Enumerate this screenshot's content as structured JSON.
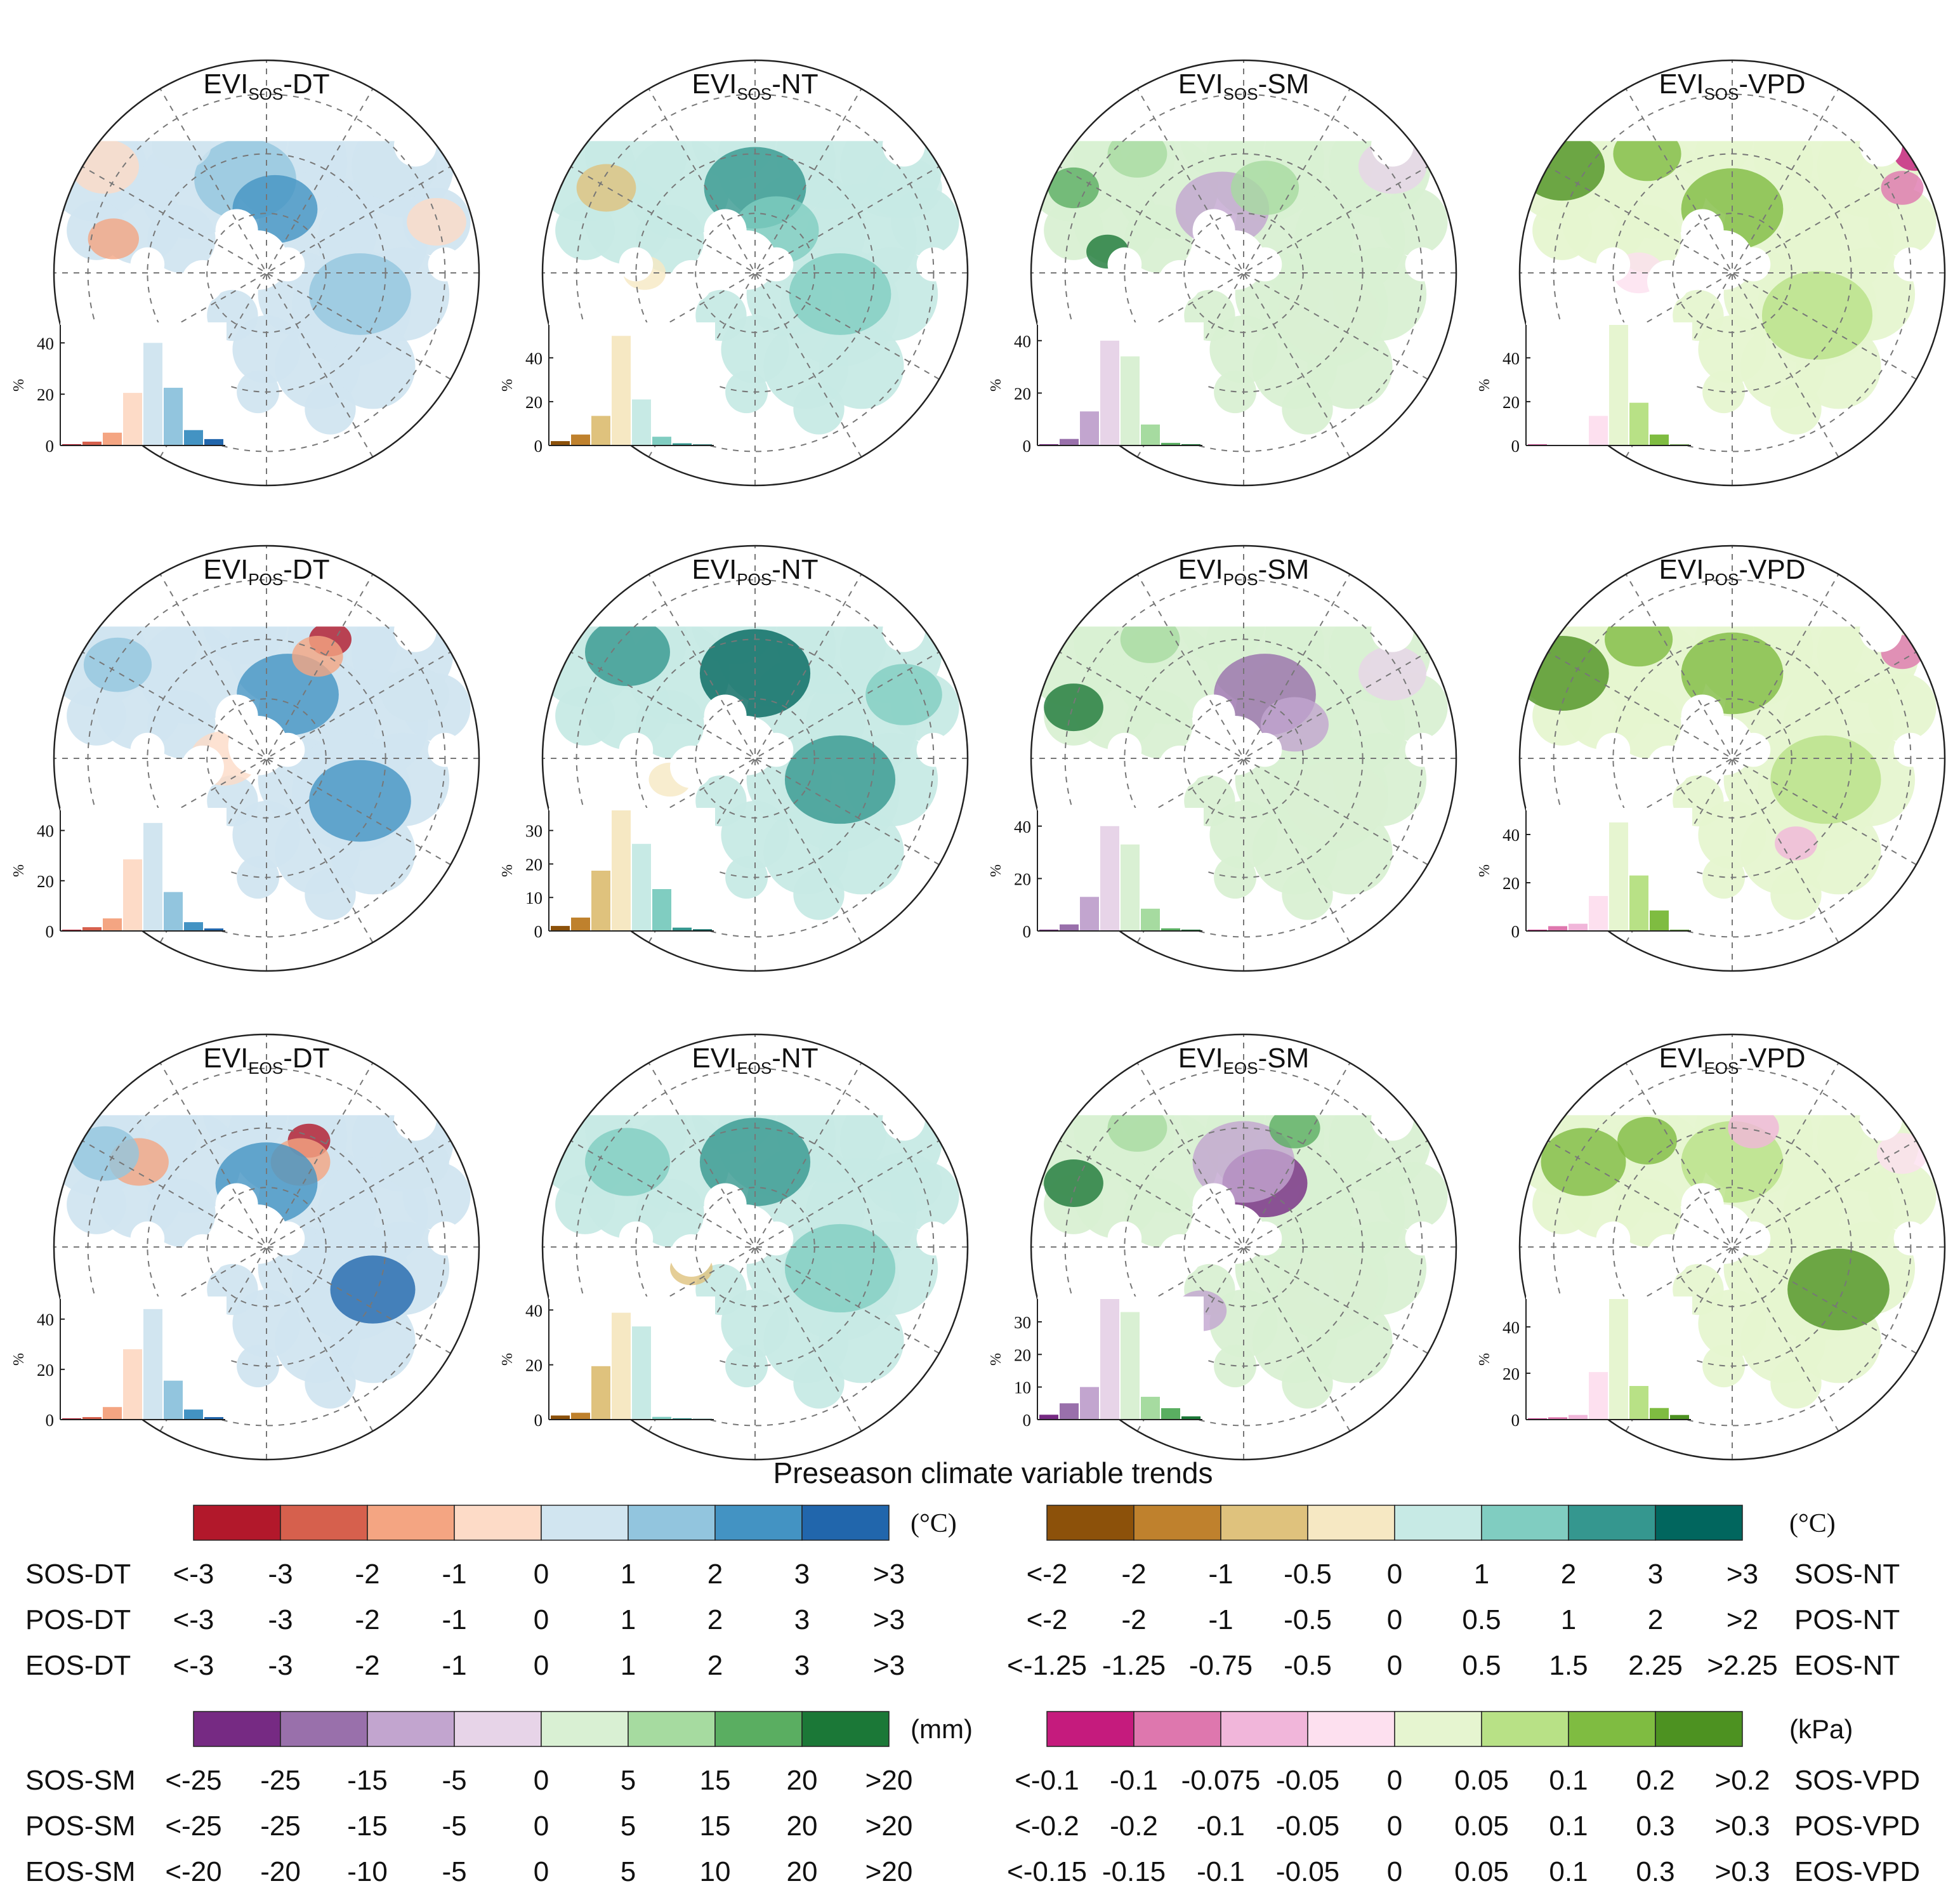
{
  "panels": [
    {
      "base": "EVI",
      "sub": "SOS",
      "suffix": "-DT",
      "ramp": "dt",
      "yticks": [
        "0",
        "20",
        "40"
      ],
      "ymax": 47,
      "bars": [
        0.5,
        1.5,
        5,
        20.5,
        40,
        22.5,
        6,
        2.5
      ],
      "blobs": [
        {
          "fx": 0.45,
          "fy": 0.28,
          "r": 0.12,
          "c": 5
        },
        {
          "fx": 0.52,
          "fy": 0.35,
          "r": 0.1,
          "c": 6
        },
        {
          "fx": 0.12,
          "fy": 0.25,
          "r": 0.08,
          "c": 3
        },
        {
          "fx": 0.14,
          "fy": 0.42,
          "r": 0.06,
          "c": 2
        },
        {
          "fx": 0.8,
          "fy": 0.25,
          "r": 0.1,
          "c": 4
        },
        {
          "fx": 0.72,
          "fy": 0.55,
          "r": 0.12,
          "c": 5
        },
        {
          "fx": 0.9,
          "fy": 0.38,
          "r": 0.07,
          "c": 3
        },
        {
          "fx": 0.3,
          "fy": 0.2,
          "r": 0.07,
          "c": 4
        }
      ]
    },
    {
      "base": "EVI",
      "sub": "SOS",
      "suffix": "-NT",
      "ramp": "nt",
      "yticks": [
        "0",
        "20",
        "40"
      ],
      "ymax": 55,
      "bars": [
        2,
        5,
        13.5,
        50,
        21,
        4,
        1,
        0.5
      ],
      "blobs": [
        {
          "fx": 0.5,
          "fy": 0.3,
          "r": 0.12,
          "c": 6
        },
        {
          "fx": 0.55,
          "fy": 0.4,
          "r": 0.1,
          "c": 5
        },
        {
          "fx": 0.15,
          "fy": 0.3,
          "r": 0.07,
          "c": 2
        },
        {
          "fx": 0.24,
          "fy": 0.5,
          "r": 0.05,
          "c": 3
        },
        {
          "fx": 0.7,
          "fy": 0.55,
          "r": 0.12,
          "c": 5
        },
        {
          "fx": 0.85,
          "fy": 0.3,
          "r": 0.09,
          "c": 4
        }
      ]
    },
    {
      "base": "EVI",
      "sub": "SOS",
      "suffix": "-SM",
      "ramp": "sm",
      "yticks": [
        "0",
        "20",
        "40"
      ],
      "ymax": 46,
      "bars": [
        0.5,
        2.5,
        13,
        40,
        34,
        8,
        1,
        0.5
      ],
      "blobs": [
        {
          "fx": 0.45,
          "fy": 0.35,
          "r": 0.11,
          "c": 2
        },
        {
          "fx": 0.55,
          "fy": 0.3,
          "r": 0.08,
          "c": 5
        },
        {
          "fx": 0.1,
          "fy": 0.3,
          "r": 0.06,
          "c": 6
        },
        {
          "fx": 0.25,
          "fy": 0.22,
          "r": 0.07,
          "c": 5
        },
        {
          "fx": 0.7,
          "fy": 0.6,
          "r": 0.12,
          "c": 4
        },
        {
          "fx": 0.85,
          "fy": 0.25,
          "r": 0.08,
          "c": 3
        },
        {
          "fx": 0.18,
          "fy": 0.45,
          "r": 0.05,
          "c": 7
        }
      ]
    },
    {
      "base": "EVI",
      "sub": "SOS",
      "suffix": "-VPD",
      "ramp": "vpd",
      "yticks": [
        "0",
        "20",
        "40"
      ],
      "ymax": 55,
      "bars": [
        0.5,
        0.3,
        0.3,
        13.5,
        55,
        19.5,
        5,
        0.5
      ],
      "blobs": [
        {
          "fx": 0.1,
          "fy": 0.25,
          "r": 0.1,
          "c": 7
        },
        {
          "fx": 0.5,
          "fy": 0.35,
          "r": 0.12,
          "c": 6
        },
        {
          "fx": 0.93,
          "fy": 0.22,
          "r": 0.05,
          "c": 0
        },
        {
          "fx": 0.9,
          "fy": 0.3,
          "r": 0.05,
          "c": 1
        },
        {
          "fx": 0.7,
          "fy": 0.6,
          "r": 0.13,
          "c": 5
        },
        {
          "fx": 0.28,
          "fy": 0.5,
          "r": 0.06,
          "c": 3
        },
        {
          "fx": 0.3,
          "fy": 0.22,
          "r": 0.08,
          "c": 6
        }
      ]
    },
    {
      "base": "EVI",
      "sub": "POS",
      "suffix": "-DT",
      "ramp": "dt",
      "yticks": [
        "0",
        "20",
        "40"
      ],
      "ymax": 48,
      "bars": [
        0.5,
        1.5,
        5,
        28.5,
        43,
        15.5,
        3.5,
        1
      ],
      "blobs": [
        {
          "fx": 0.55,
          "fy": 0.35,
          "r": 0.12,
          "c": 6
        },
        {
          "fx": 0.65,
          "fy": 0.22,
          "r": 0.05,
          "c": 0
        },
        {
          "fx": 0.62,
          "fy": 0.26,
          "r": 0.06,
          "c": 2
        },
        {
          "fx": 0.15,
          "fy": 0.28,
          "r": 0.08,
          "c": 5
        },
        {
          "fx": 0.72,
          "fy": 0.6,
          "r": 0.12,
          "c": 6
        },
        {
          "fx": 0.85,
          "fy": 0.35,
          "r": 0.08,
          "c": 4
        },
        {
          "fx": 0.4,
          "fy": 0.5,
          "r": 0.08,
          "c": 3
        }
      ]
    },
    {
      "base": "EVI",
      "sub": "POS",
      "suffix": "-NT",
      "ramp": "nt",
      "yticks": [
        "0",
        "10",
        "20",
        "30"
      ],
      "ymax": 36,
      "bars": [
        1.5,
        4,
        18,
        36,
        26,
        12.5,
        1,
        0.5
      ],
      "blobs": [
        {
          "fx": 0.5,
          "fy": 0.3,
          "r": 0.13,
          "c": 7
        },
        {
          "fx": 0.2,
          "fy": 0.25,
          "r": 0.1,
          "c": 6
        },
        {
          "fx": 0.7,
          "fy": 0.55,
          "r": 0.13,
          "c": 6
        },
        {
          "fx": 0.85,
          "fy": 0.35,
          "r": 0.09,
          "c": 5
        },
        {
          "fx": 0.3,
          "fy": 0.55,
          "r": 0.05,
          "c": 3
        }
      ]
    },
    {
      "base": "EVI",
      "sub": "POS",
      "suffix": "-SM",
      "ramp": "sm",
      "yticks": [
        "0",
        "20",
        "40"
      ],
      "ymax": 46,
      "bars": [
        0.5,
        2.5,
        13,
        40,
        33,
        8.5,
        1,
        0.5
      ],
      "blobs": [
        {
          "fx": 0.55,
          "fy": 0.35,
          "r": 0.12,
          "c": 1
        },
        {
          "fx": 0.1,
          "fy": 0.38,
          "r": 0.07,
          "c": 7
        },
        {
          "fx": 0.28,
          "fy": 0.22,
          "r": 0.07,
          "c": 5
        },
        {
          "fx": 0.72,
          "fy": 0.6,
          "r": 0.12,
          "c": 4
        },
        {
          "fx": 0.85,
          "fy": 0.3,
          "r": 0.08,
          "c": 3
        },
        {
          "fx": 0.62,
          "fy": 0.42,
          "r": 0.08,
          "c": 2
        }
      ]
    },
    {
      "base": "EVI",
      "sub": "POS",
      "suffix": "-VPD",
      "ramp": "vpd",
      "yticks": [
        "0",
        "20",
        "40"
      ],
      "ymax": 50,
      "bars": [
        0.5,
        2,
        3,
        14.5,
        45,
        23,
        8.5,
        0.5
      ],
      "blobs": [
        {
          "fx": 0.1,
          "fy": 0.3,
          "r": 0.11,
          "c": 7
        },
        {
          "fx": 0.5,
          "fy": 0.3,
          "r": 0.12,
          "c": 6
        },
        {
          "fx": 0.9,
          "fy": 0.25,
          "r": 0.05,
          "c": 1
        },
        {
          "fx": 0.65,
          "fy": 0.7,
          "r": 0.05,
          "c": 2
        },
        {
          "fx": 0.72,
          "fy": 0.55,
          "r": 0.13,
          "c": 5
        },
        {
          "fx": 0.28,
          "fy": 0.22,
          "r": 0.08,
          "c": 6
        }
      ]
    },
    {
      "base": "EVI",
      "sub": "EOS",
      "suffix": "-DT",
      "ramp": "dt",
      "yticks": [
        "0",
        "20",
        "40"
      ],
      "ymax": 48,
      "bars": [
        0.5,
        1,
        5,
        28,
        44,
        15.5,
        4,
        1
      ],
      "blobs": [
        {
          "fx": 0.6,
          "fy": 0.25,
          "r": 0.05,
          "c": 0
        },
        {
          "fx": 0.58,
          "fy": 0.3,
          "r": 0.07,
          "c": 2
        },
        {
          "fx": 0.5,
          "fy": 0.35,
          "r": 0.12,
          "c": 6
        },
        {
          "fx": 0.2,
          "fy": 0.3,
          "r": 0.07,
          "c": 2
        },
        {
          "fx": 0.75,
          "fy": 0.6,
          "r": 0.1,
          "c": 7
        },
        {
          "fx": 0.12,
          "fy": 0.28,
          "r": 0.08,
          "c": 5
        },
        {
          "fx": 0.85,
          "fy": 0.3,
          "r": 0.08,
          "c": 4
        }
      ]
    },
    {
      "base": "EVI",
      "sub": "EOS",
      "suffix": "-NT",
      "ramp": "nt",
      "yticks": [
        "0",
        "20",
        "40"
      ],
      "ymax": 44,
      "bars": [
        1.5,
        2.5,
        19.5,
        39,
        34,
        1,
        0.5,
        0.3
      ],
      "blobs": [
        {
          "fx": 0.5,
          "fy": 0.3,
          "r": 0.13,
          "c": 6
        },
        {
          "fx": 0.2,
          "fy": 0.3,
          "r": 0.1,
          "c": 5
        },
        {
          "fx": 0.7,
          "fy": 0.55,
          "r": 0.13,
          "c": 5
        },
        {
          "fx": 0.85,
          "fy": 0.35,
          "r": 0.09,
          "c": 4
        },
        {
          "fx": 0.35,
          "fy": 0.55,
          "r": 0.05,
          "c": 2
        }
      ]
    },
    {
      "base": "EVI",
      "sub": "EOS",
      "suffix": "-SM",
      "ramp": "sm",
      "yticks": [
        "0",
        "10",
        "20",
        "30"
      ],
      "ymax": 37,
      "bars": [
        1.5,
        5,
        10,
        37,
        33,
        7,
        3.5,
        1
      ],
      "blobs": [
        {
          "fx": 0.55,
          "fy": 0.35,
          "r": 0.1,
          "c": 0
        },
        {
          "fx": 0.5,
          "fy": 0.3,
          "r": 0.12,
          "c": 2
        },
        {
          "fx": 0.1,
          "fy": 0.35,
          "r": 0.07,
          "c": 7
        },
        {
          "fx": 0.62,
          "fy": 0.22,
          "r": 0.06,
          "c": 6
        },
        {
          "fx": 0.25,
          "fy": 0.22,
          "r": 0.07,
          "c": 5
        },
        {
          "fx": 0.7,
          "fy": 0.6,
          "r": 0.12,
          "c": 4
        },
        {
          "fx": 0.4,
          "fy": 0.65,
          "r": 0.06,
          "c": 2
        }
      ]
    },
    {
      "base": "EVI",
      "sub": "EOS",
      "suffix": "-VPD",
      "ramp": "vpd",
      "yticks": [
        "0",
        "20",
        "40"
      ],
      "ymax": 52,
      "bars": [
        0.5,
        1,
        2,
        20.5,
        52,
        14.5,
        5,
        2
      ],
      "blobs": [
        {
          "fx": 0.75,
          "fy": 0.6,
          "r": 0.12,
          "c": 7
        },
        {
          "fx": 0.5,
          "fy": 0.3,
          "r": 0.12,
          "c": 5
        },
        {
          "fx": 0.15,
          "fy": 0.3,
          "r": 0.1,
          "c": 6
        },
        {
          "fx": 0.55,
          "fy": 0.22,
          "r": 0.06,
          "c": 2
        },
        {
          "fx": 0.9,
          "fy": 0.28,
          "r": 0.06,
          "c": 3
        },
        {
          "fx": 0.3,
          "fy": 0.25,
          "r": 0.07,
          "c": 6
        }
      ]
    }
  ],
  "ylabel": "%",
  "legend_title": "Preseason climate variable trends",
  "colors": {
    "dt": [
      "#b2182b",
      "#d6604d",
      "#f4a582",
      "#fddbc7",
      "#d1e5f0",
      "#92c5de",
      "#4393c3",
      "#2166ac"
    ],
    "nt": [
      "#8c510a",
      "#bf812d",
      "#dfc27d",
      "#f6e8c3",
      "#c7eae5",
      "#80cdc1",
      "#35978f",
      "#01665e"
    ],
    "sm": [
      "#762a83",
      "#9970ab",
      "#c2a5cf",
      "#e7d4e8",
      "#d9f0d3",
      "#a6dba0",
      "#5aae61",
      "#1b7837"
    ],
    "vpd": [
      "#c51b7d",
      "#de77ae",
      "#f1b6da",
      "#fde0ef",
      "#e6f5d0",
      "#b8e186",
      "#7fbc41",
      "#4d9221"
    ]
  },
  "legends": [
    {
      "id": "dt",
      "unit": "(°C)",
      "side": "left",
      "rows": [
        {
          "label": "SOS-DT",
          "ticks": [
            "<-3",
            "-3",
            "-2",
            "-1",
            "0",
            "1",
            "2",
            "3",
            ">3"
          ]
        },
        {
          "label": "POS-DT",
          "ticks": [
            "<-3",
            "-3",
            "-2",
            "-1",
            "0",
            "1",
            "2",
            "3",
            ">3"
          ]
        },
        {
          "label": "EOS-DT",
          "ticks": [
            "<-3",
            "-3",
            "-2",
            "-1",
            "0",
            "1",
            "2",
            "3",
            ">3"
          ]
        }
      ]
    },
    {
      "id": "nt",
      "unit": "(°C)",
      "side": "right",
      "rows": [
        {
          "label": "SOS-NT",
          "ticks": [
            "<-2",
            "-2",
            "-1",
            "-0.5",
            "0",
            "1",
            "2",
            "3",
            ">3"
          ]
        },
        {
          "label": "POS-NT",
          "ticks": [
            "<-2",
            "-2",
            "-1",
            "-0.5",
            "0",
            "0.5",
            "1",
            "2",
            ">2"
          ]
        },
        {
          "label": "EOS-NT",
          "ticks": [
            "<-1.25",
            "-1.25",
            "-0.75",
            "-0.5",
            "0",
            "0.5",
            "1.5",
            "2.25",
            ">2.25"
          ]
        }
      ]
    },
    {
      "id": "sm",
      "unit": "(mm)",
      "side": "left",
      "rows": [
        {
          "label": "SOS-SM",
          "ticks": [
            "<-25",
            "-25",
            "-15",
            "-5",
            "0",
            "5",
            "15",
            "20",
            ">20"
          ]
        },
        {
          "label": "POS-SM",
          "ticks": [
            "<-25",
            "-25",
            "-15",
            "-5",
            "0",
            "5",
            "15",
            "20",
            ">20"
          ]
        },
        {
          "label": "EOS-SM",
          "ticks": [
            "<-20",
            "-20",
            "-10",
            "-5",
            "0",
            "5",
            "10",
            "20",
            ">20"
          ]
        }
      ]
    },
    {
      "id": "vpd",
      "unit": "(kPa)",
      "side": "right",
      "rows": [
        {
          "label": "SOS-VPD",
          "ticks": [
            "<-0.1",
            "-0.1",
            "-0.075",
            "-0.05",
            "0",
            "0.05",
            "0.1",
            "0.2",
            ">0.2"
          ]
        },
        {
          "label": "POS-VPD",
          "ticks": [
            "<-0.2",
            "-0.2",
            "-0.1",
            "-0.05",
            "0",
            "0.05",
            "0.1",
            "0.3",
            ">0.3"
          ]
        },
        {
          "label": "EOS-VPD",
          "ticks": [
            "<-0.15",
            "-0.15",
            "-0.1",
            "-0.05",
            "0",
            "0.05",
            "0.1",
            "0.3",
            ">0.3"
          ]
        }
      ]
    }
  ]
}
